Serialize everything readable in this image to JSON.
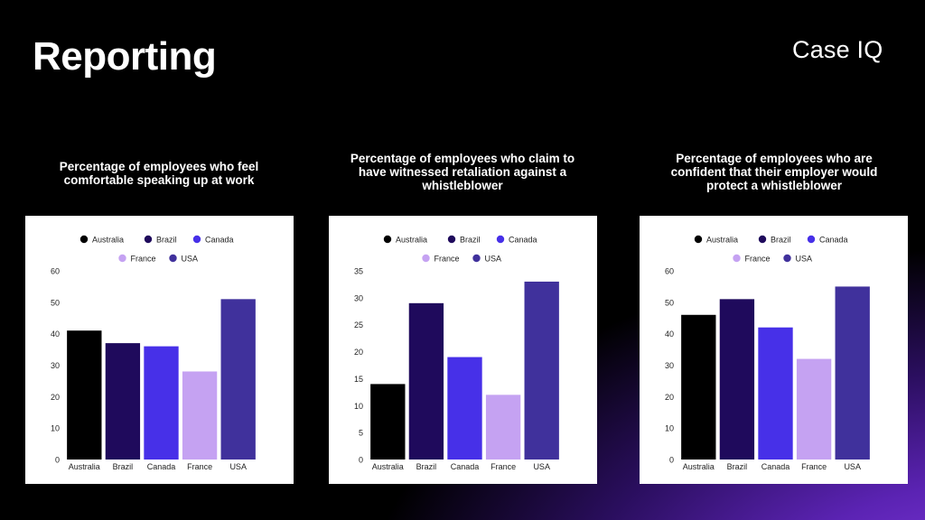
{
  "slide": {
    "title": "Reporting",
    "logo_text": "Case IQ"
  },
  "colors": {
    "Australia": "#000000",
    "Brazil": "#1f0a5c",
    "Canada": "#4730e8",
    "France": "#c5a2f2",
    "USA": "#40319c"
  },
  "chart_data": [
    {
      "type": "bar",
      "title": "Percentage of employees who feel comfortable speaking up at work",
      "title_lines": [
        "Percentage of employees who feel",
        "comfortable speaking up at work"
      ],
      "categories": [
        "Australia",
        "Brazil",
        "Canada",
        "France",
        "USA"
      ],
      "values": [
        41,
        37,
        36,
        28,
        51
      ],
      "ylim": [
        0,
        60
      ],
      "yticks": [
        0,
        10,
        20,
        30,
        40,
        50,
        60
      ],
      "legend": [
        "Australia",
        "Brazil",
        "Canada",
        "France",
        "USA"
      ],
      "legend_position": "top",
      "grid": false
    },
    {
      "type": "bar",
      "title": "Percentage of employees who claim to have witnessed retaliation against a whistleblower",
      "title_lines": [
        "Percentage of employees who claim to",
        "have witnessed retaliation against a",
        "whistleblower"
      ],
      "categories": [
        "Australia",
        "Brazil",
        "Canada",
        "France",
        "USA"
      ],
      "values": [
        14,
        29,
        19,
        12,
        33
      ],
      "ylim": [
        0,
        35
      ],
      "yticks": [
        0,
        5,
        10,
        15,
        20,
        25,
        30,
        35
      ],
      "legend": [
        "Australia",
        "Brazil",
        "Canada",
        "France",
        "USA"
      ],
      "legend_position": "top",
      "grid": false
    },
    {
      "type": "bar",
      "title": "Percentage of employees who are confident that their employer would protect a whistleblower",
      "title_lines": [
        "Percentage of employees who are",
        "confident that their employer would",
        "protect a whistleblower"
      ],
      "categories": [
        "Australia",
        "Brazil",
        "Canada",
        "France",
        "USA"
      ],
      "values": [
        46,
        51,
        42,
        32,
        55
      ],
      "ylim": [
        0,
        60
      ],
      "yticks": [
        0,
        10,
        20,
        30,
        40,
        50,
        60
      ],
      "legend": [
        "Australia",
        "Brazil",
        "Canada",
        "France",
        "USA"
      ],
      "legend_position": "top",
      "grid": false
    }
  ]
}
